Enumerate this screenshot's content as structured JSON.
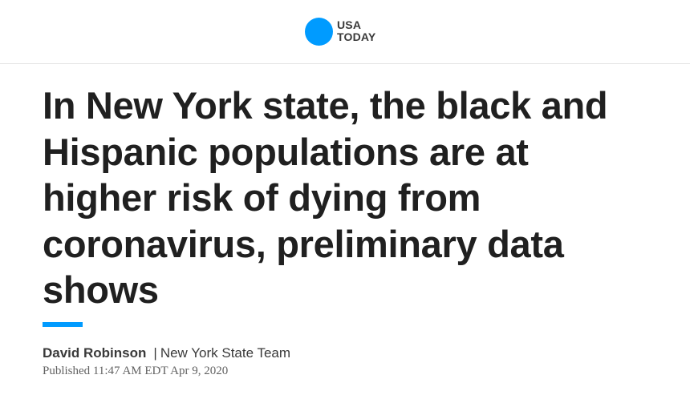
{
  "masthead": {
    "logo": {
      "line1": "USA",
      "line2": "TODAY",
      "brand_color": "#009bff"
    }
  },
  "article": {
    "headline": "In New York state, the black and Hispanic populations are at higher risk of dying from coronavirus, preliminary data shows",
    "accent_color": "#009bff",
    "byline": {
      "author": "David Robinson",
      "separator": "|",
      "team": "New York State Team"
    },
    "published": "Published 11:47 AM EDT Apr 9, 2020"
  }
}
